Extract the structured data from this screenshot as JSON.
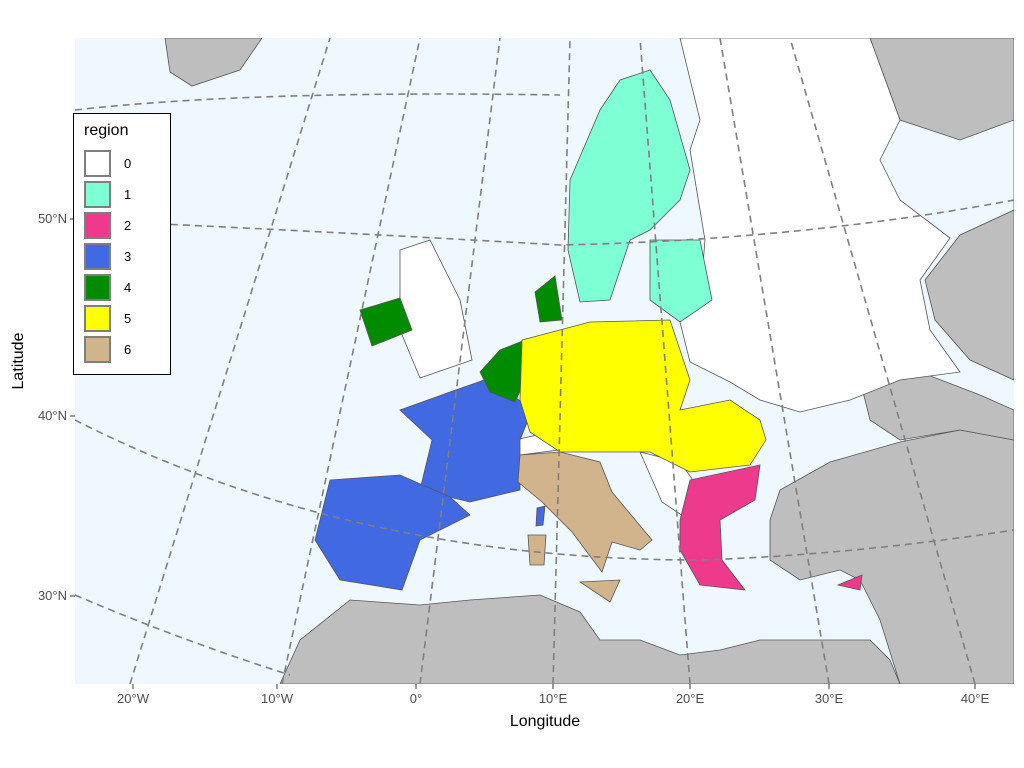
{
  "axes": {
    "xlabel": "Longitude",
    "ylabel": "Latitude",
    "xticks": [
      "20°W",
      "10°W",
      "0°",
      "10°E",
      "20°E",
      "30°E",
      "40°E"
    ],
    "yticks": [
      "50°N",
      "40°N",
      "30°N"
    ]
  },
  "colors": {
    "sea": "#f0f8ff",
    "land_other": "#bebebe",
    "border": "#555555"
  },
  "legend": {
    "title": "region",
    "items": [
      {
        "label": "0",
        "color": "#ffffff"
      },
      {
        "label": "1",
        "color": "#7fffd4"
      },
      {
        "label": "2",
        "color": "#ee3a8c"
      },
      {
        "label": "3",
        "color": "#4169e1"
      },
      {
        "label": "4",
        "color": "#008b00"
      },
      {
        "label": "5",
        "color": "#ffff00"
      },
      {
        "label": "6",
        "color": "#d2b48c"
      }
    ]
  }
}
